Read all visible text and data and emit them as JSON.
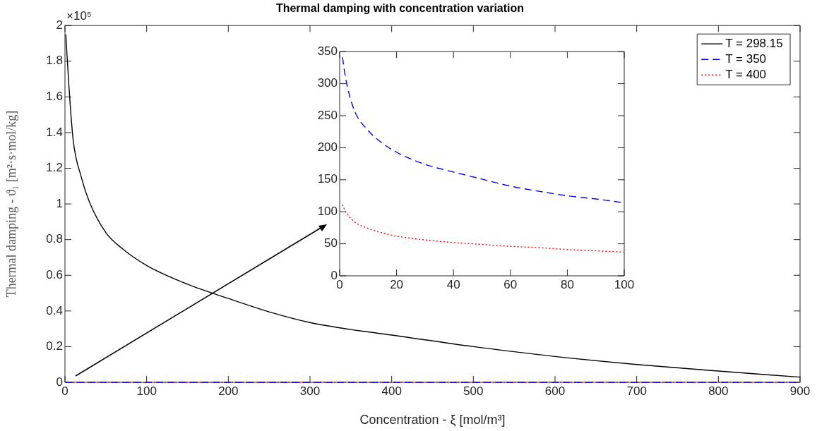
{
  "chart_data": [
    {
      "type": "line",
      "title": "Thermal damping with concentration variation",
      "xlabel": "Concentration - ξ [mol/m³]",
      "ylabel": "Thermal damping - ϑ₁ [m²·s·mol/kg]",
      "annotations": [
        "×10⁵"
      ],
      "xlim": [
        0,
        900
      ],
      "xticks": [
        0,
        100,
        200,
        300,
        400,
        500,
        600,
        700,
        800,
        900
      ],
      "ylim": [
        0,
        2
      ],
      "yticks": [
        0,
        0.2,
        0.4,
        0.6,
        0.8,
        1,
        1.2,
        1.4,
        1.6,
        1.8,
        2
      ],
      "legend": "top right",
      "marker": "none",
      "series": [
        {
          "name": "T = 298.15",
          "color": "#000000",
          "line_style": "solid",
          "x": [
            1,
            5,
            10,
            20,
            30,
            50,
            70,
            100,
            150,
            200,
            250,
            300,
            350,
            400,
            500,
            600,
            700,
            800,
            900
          ],
          "values": [
            1.95,
            1.65,
            1.36,
            1.15,
            1.01,
            0.84,
            0.75,
            0.655,
            0.55,
            0.47,
            0.395,
            0.335,
            0.296,
            0.265,
            0.2,
            0.145,
            0.1,
            0.063,
            0.029
          ]
        },
        {
          "name": "T = 350",
          "color": "#0000ff",
          "line_style": "dashed",
          "x": [
            1,
            900
          ],
          "values": [
            0,
            0
          ]
        },
        {
          "name": "T = 400",
          "color": "#ff0000",
          "line_style": "dotted",
          "x": [
            1,
            900
          ],
          "values": [
            0,
            0
          ]
        }
      ]
    },
    {
      "type": "line",
      "xlim": [
        0,
        100
      ],
      "xticks": [
        0,
        20,
        40,
        60,
        80,
        100
      ],
      "ylim": [
        0,
        350
      ],
      "yticks": [
        0,
        50,
        100,
        150,
        200,
        250,
        300,
        350
      ],
      "marker": "none",
      "series": [
        {
          "color": "#0000ff",
          "line_style": "dashed",
          "x": [
            1,
            2,
            5,
            10,
            15,
            20,
            30,
            40,
            50,
            60,
            70,
            80,
            90,
            100
          ],
          "values": [
            341,
            311,
            260,
            227,
            207,
            193,
            174,
            162,
            151,
            140,
            132,
            125,
            120,
            114
          ]
        },
        {
          "color": "#ff0000",
          "line_style": "dotted",
          "x": [
            1,
            2,
            5,
            10,
            15,
            20,
            30,
            40,
            50,
            60,
            70,
            80,
            90,
            100
          ],
          "values": [
            111,
            101,
            85,
            74,
            67,
            62,
            56,
            52,
            49,
            46,
            44,
            41,
            39,
            37
          ]
        }
      ]
    }
  ]
}
